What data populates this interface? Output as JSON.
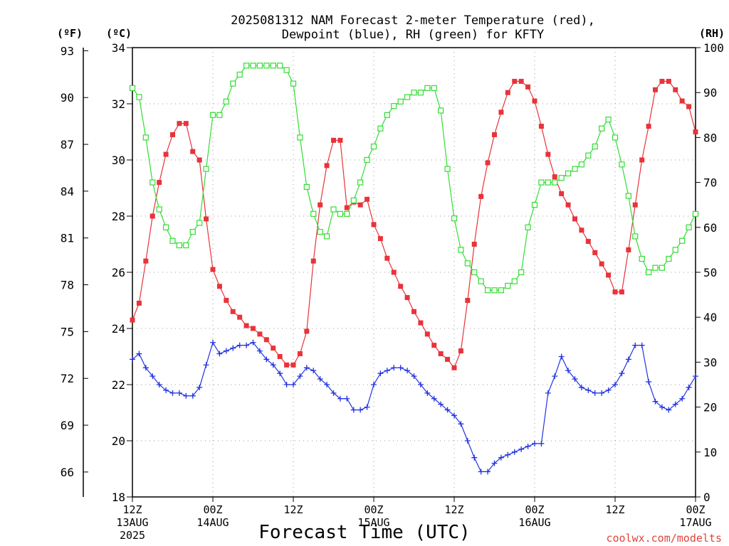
{
  "chart_data": {
    "type": "line",
    "title_lines": [
      "2025081312 NAM Forecast 2-meter Temperature (red),",
      "Dewpoint (blue), RH (green) for KFTY"
    ],
    "xlabel": "Forecast Time (UTC)",
    "credit": "coolwx.com/modelts",
    "units": {
      "fahrenheit": "(ºF)",
      "celsius": "(ºC)",
      "rh": "(RH)"
    },
    "x_range_hours": [
      0,
      84
    ],
    "x_ticks": [
      {
        "hour": 0,
        "lines": [
          "12Z",
          "13AUG",
          "2025"
        ]
      },
      {
        "hour": 12,
        "lines": [
          "00Z",
          "14AUG"
        ]
      },
      {
        "hour": 24,
        "lines": [
          "12Z"
        ]
      },
      {
        "hour": 36,
        "lines": [
          "00Z",
          "15AUG"
        ]
      },
      {
        "hour": 48,
        "lines": [
          "12Z"
        ]
      },
      {
        "hour": 60,
        "lines": [
          "00Z",
          "16AUG"
        ]
      },
      {
        "hour": 72,
        "lines": [
          "12Z"
        ]
      },
      {
        "hour": 84,
        "lines": [
          "00Z",
          "17AUG"
        ]
      }
    ],
    "celsius_axis": {
      "range": [
        18,
        34
      ],
      "ticks": [
        18,
        20,
        22,
        24,
        26,
        28,
        30,
        32,
        34
      ]
    },
    "fahrenheit_ticks": [
      66,
      69,
      72,
      75,
      78,
      81,
      84,
      87,
      90,
      93
    ],
    "rh_axis": {
      "range": [
        0,
        100
      ],
      "ticks": [
        0,
        10,
        20,
        30,
        40,
        50,
        60,
        70,
        80,
        90,
        100
      ]
    },
    "grid": true,
    "series": [
      {
        "key": "temperature",
        "axis": "celsius",
        "color": "#e8333a",
        "marker": "filled-square",
        "values": [
          24.3,
          24.9,
          26.4,
          28.0,
          29.2,
          30.2,
          30.9,
          31.3,
          31.3,
          30.3,
          30.0,
          27.9,
          26.1,
          25.5,
          25.0,
          24.6,
          24.4,
          24.1,
          24.0,
          23.8,
          23.6,
          23.3,
          23.0,
          22.7,
          22.7,
          23.1,
          23.9,
          26.4,
          28.4,
          29.8,
          30.7,
          30.7,
          28.3,
          28.5,
          28.4,
          28.6,
          27.7,
          27.2,
          26.5,
          26.0,
          25.5,
          25.1,
          24.6,
          24.2,
          23.8,
          23.4,
          23.1,
          22.9,
          22.6,
          23.2,
          25.0,
          27.0,
          28.7,
          29.9,
          30.9,
          31.7,
          32.4,
          32.8,
          32.8,
          32.6,
          32.1,
          31.2,
          30.2,
          29.4,
          28.8,
          28.4,
          27.9,
          27.5,
          27.1,
          26.7,
          26.3,
          25.9,
          25.3,
          25.3,
          26.8,
          28.4,
          30.0,
          31.2,
          32.5,
          32.8,
          32.8,
          32.5,
          32.1,
          31.9,
          31.0
        ]
      },
      {
        "key": "dewpoint",
        "axis": "celsius",
        "color": "#2233e0",
        "marker": "plus",
        "values": [
          22.9,
          23.1,
          22.6,
          22.3,
          22.0,
          21.8,
          21.7,
          21.7,
          21.6,
          21.6,
          21.9,
          22.7,
          23.5,
          23.1,
          23.2,
          23.3,
          23.4,
          23.4,
          23.5,
          23.2,
          22.9,
          22.7,
          22.4,
          22.0,
          22.0,
          22.3,
          22.6,
          22.5,
          22.2,
          22.0,
          21.7,
          21.5,
          21.5,
          21.1,
          21.1,
          21.2,
          22.0,
          22.4,
          22.5,
          22.6,
          22.6,
          22.5,
          22.3,
          22.0,
          21.7,
          21.5,
          21.3,
          21.1,
          20.9,
          20.6,
          20.0,
          19.4,
          18.9,
          18.9,
          19.2,
          19.4,
          19.5,
          19.6,
          19.7,
          19.8,
          19.9,
          19.9,
          21.7,
          22.3,
          23.0,
          22.5,
          22.2,
          21.9,
          21.8,
          21.7,
          21.7,
          21.8,
          22.0,
          22.4,
          22.9,
          23.4,
          23.4,
          22.1,
          21.4,
          21.2,
          21.1,
          21.3,
          21.5,
          21.9,
          22.3
        ]
      },
      {
        "key": "rh",
        "axis": "rh",
        "color": "#33dd33",
        "marker": "open-square",
        "values": [
          91,
          89,
          80,
          70,
          64,
          60,
          57,
          56,
          56,
          59,
          61,
          73,
          85,
          85,
          88,
          92,
          94,
          96,
          96,
          96,
          96,
          96,
          96,
          95,
          92,
          80,
          69,
          63,
          59,
          58,
          64,
          63,
          63,
          66,
          70,
          75,
          78,
          82,
          85,
          87,
          88,
          89,
          90,
          90,
          91,
          91,
          86,
          73,
          62,
          55,
          52,
          50,
          48,
          46,
          46,
          46,
          47,
          48,
          50,
          60,
          65,
          70,
          70,
          70,
          71,
          72,
          73,
          74,
          76,
          78,
          82,
          84,
          80,
          74,
          67,
          58,
          53,
          50,
          51,
          51,
          53,
          55,
          57,
          60,
          63
        ]
      }
    ]
  }
}
